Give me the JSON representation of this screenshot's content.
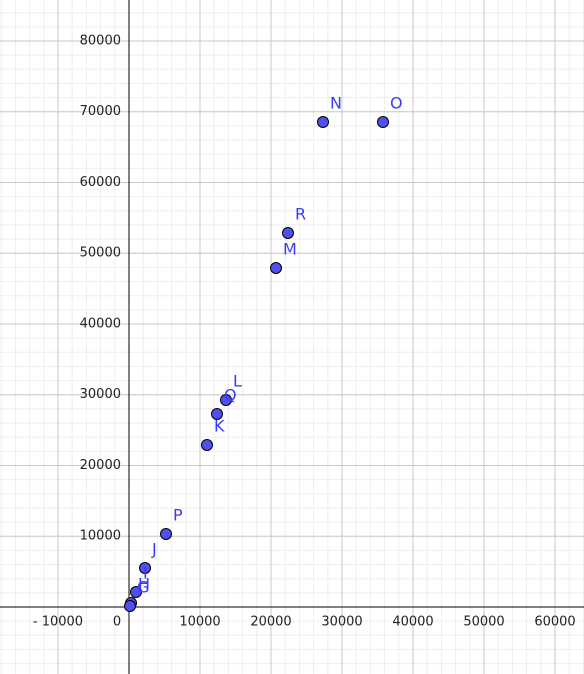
{
  "chart_data": {
    "type": "scatter",
    "points": [
      {
        "name": "N",
        "x": 27324,
        "y": 68551
      },
      {
        "name": "O",
        "x": 35775,
        "y": 68551
      },
      {
        "name": "R",
        "x": 22394,
        "y": 52862
      },
      {
        "name": "M",
        "x": 20704,
        "y": 47915
      },
      {
        "name": "L",
        "x": 13662,
        "y": 29258
      },
      {
        "name": "Q",
        "x": 12394,
        "y": 27279
      },
      {
        "name": "K",
        "x": 10986,
        "y": 22898
      },
      {
        "name": "P",
        "x": 5211,
        "y": 10318
      },
      {
        "name": "J",
        "x": 2254,
        "y": 5512
      },
      {
        "name": "I",
        "x": 986,
        "y": 2120
      },
      {
        "name": "H",
        "x": 282,
        "y": 565
      },
      {
        "name": "G",
        "x": 141,
        "y": 141
      }
    ],
    "color": "#5050f0",
    "label_color": "#3a3aff",
    "xlim": [
      -18169,
      64085
    ],
    "ylim": [
      -9470,
      85795
    ],
    "xticks": [
      {
        "value": -10000,
        "label": "- 10000"
      },
      0,
      10000,
      20000,
      30000,
      40000,
      50000,
      60000
    ],
    "yticks": [
      10000,
      20000,
      30000,
      40000,
      50000,
      60000,
      70000,
      80000
    ],
    "grid": true
  }
}
